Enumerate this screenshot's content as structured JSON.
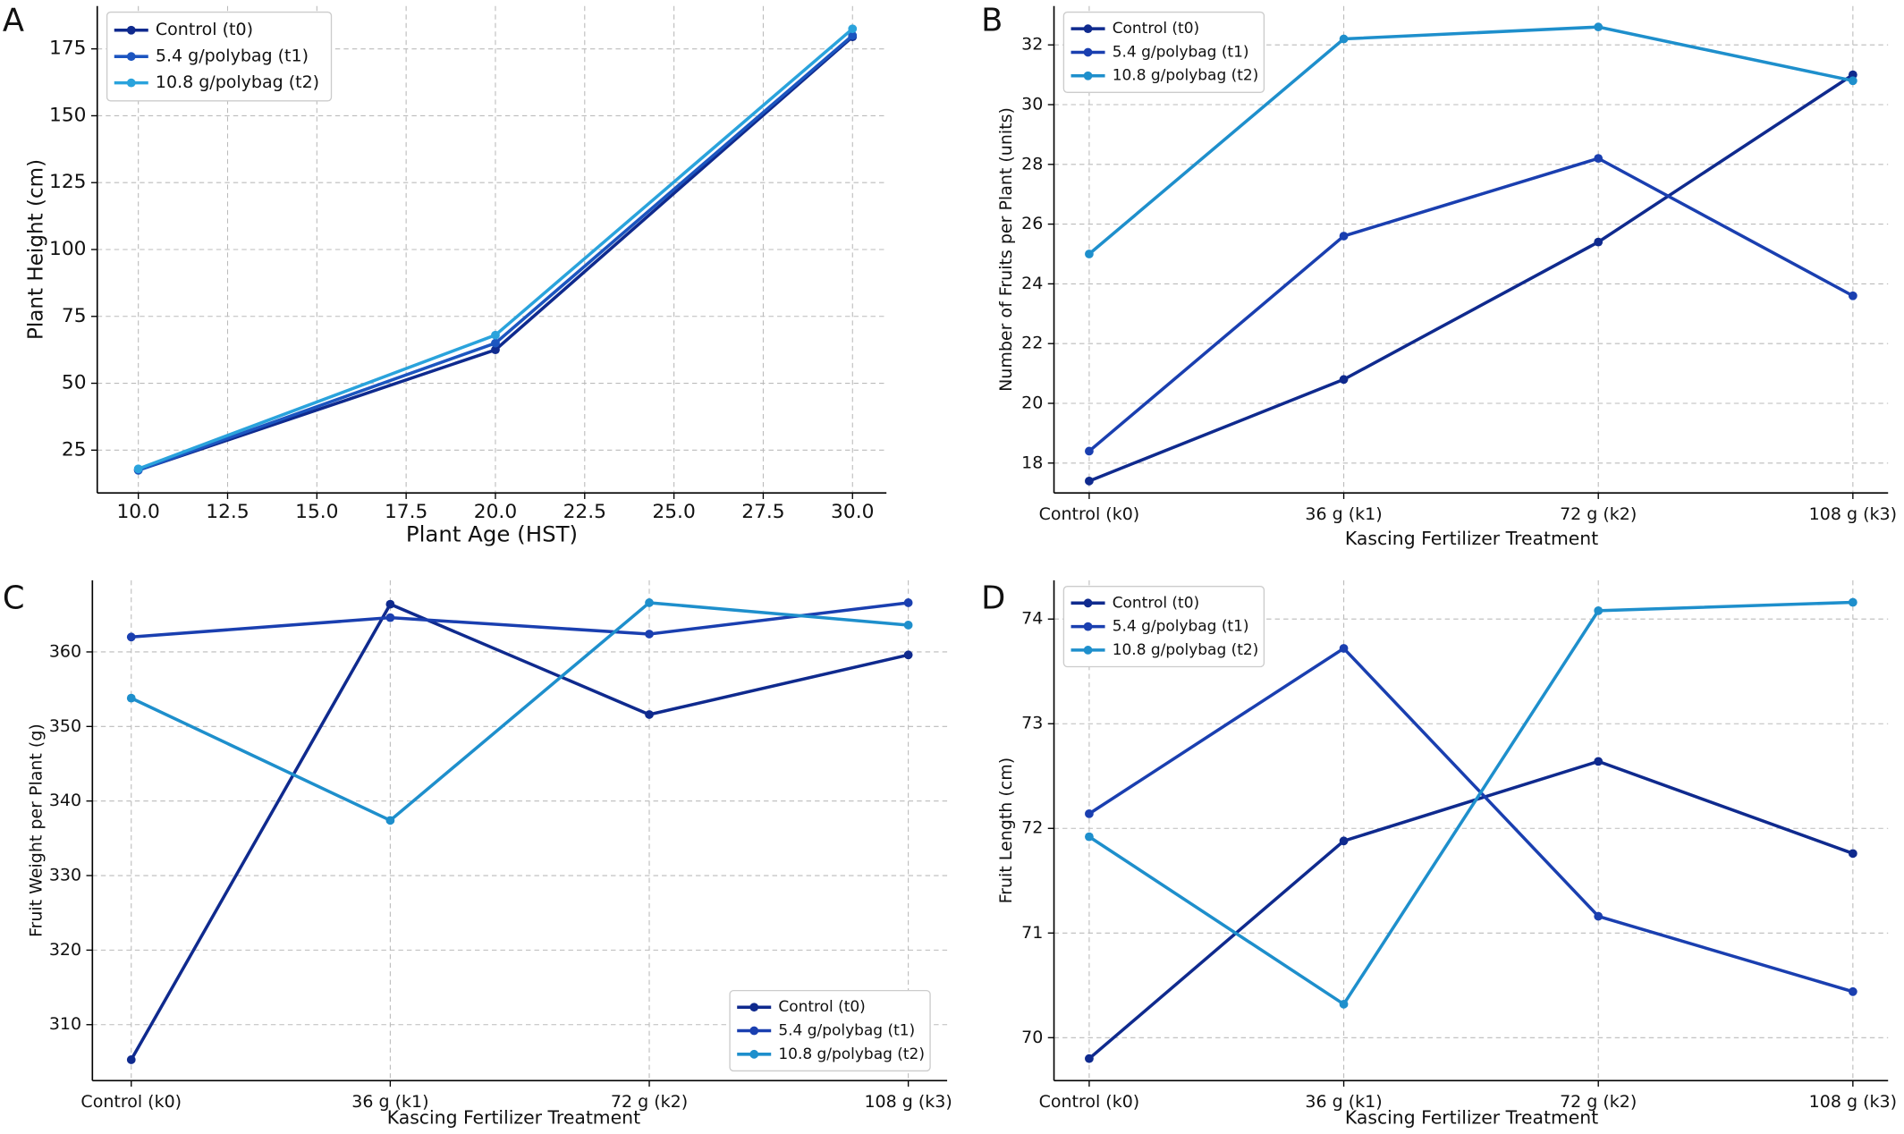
{
  "chart_data": [
    {
      "type": "line",
      "label": "A",
      "x_label": "Plant Age (HST)",
      "y_label": "Plant Height (cm)",
      "x": [
        10,
        20,
        30
      ],
      "series": [
        {
          "name": "Control (t0)",
          "color": "#0f2a8e",
          "values": [
            17.5,
            62.5,
            179.5
          ]
        },
        {
          "name": "5.4 g/polybag (t1)",
          "color": "#1c55c0",
          "values": [
            17.5,
            65,
            180
          ]
        },
        {
          "name": "10.8 g/polybag (t2)",
          "color": "#2aa3dc",
          "values": [
            18,
            68,
            182.5
          ]
        }
      ],
      "xlim": [
        8.85,
        30.95
      ],
      "xticks": [
        {
          "value": 10,
          "label": "10.0"
        },
        12.5,
        {
          "value": 15,
          "label": "15.0"
        },
        17.5,
        {
          "value": 20,
          "label": "20.0"
        },
        22.5,
        {
          "value": 25,
          "label": "25.0"
        },
        27.5,
        {
          "value": 30,
          "label": "30.0"
        }
      ],
      "ylim": [
        9,
        191
      ],
      "yticks": [
        25,
        50,
        75,
        100,
        125,
        150,
        175
      ],
      "grid": true,
      "legend": "upper left"
    },
    {
      "type": "line",
      "label": "B",
      "x_label": "Kascing Fertilizer Treatment",
      "y_label": "Number of Fruits per Plant (units)",
      "categories": [
        "Control (k0)",
        "36 g (k1)",
        "72 g (k2)",
        "108 g (k3)"
      ],
      "series": [
        {
          "name": "Control (t0)",
          "color": "#0f2a8e",
          "values": [
            17.4,
            20.8,
            25.4,
            31.0
          ]
        },
        {
          "name": "5.4 g/polybag (t1)",
          "color": "#1a3fb0",
          "values": [
            18.4,
            25.6,
            28.2,
            23.6
          ]
        },
        {
          "name": "10.8 g/polybag (t2)",
          "color": "#1e8fcc",
          "values": [
            25.0,
            32.2,
            32.6,
            30.8
          ]
        }
      ],
      "ylim": [
        17.0,
        33.3
      ],
      "yticks": [
        18,
        20,
        22,
        24,
        26,
        28,
        30,
        32
      ],
      "grid": true,
      "legend": "upper left"
    },
    {
      "type": "line",
      "label": "C",
      "x_label": "Kascing Fertilizer Treatment",
      "y_label": "Fruit Weight per Plant (g)",
      "categories": [
        "Control (k0)",
        "36 g (k1)",
        "72 g (k2)",
        "108 g (k3)"
      ],
      "series": [
        {
          "name": "Control (t0)",
          "color": "#0f2a8e",
          "values": [
            305.3,
            366.4,
            351.6,
            359.6
          ]
        },
        {
          "name": "5.4 g/polybag (t1)",
          "color": "#1a3fb0",
          "values": [
            362.0,
            364.6,
            362.4,
            366.6
          ]
        },
        {
          "name": "10.8 g/polybag (t2)",
          "color": "#1e8fcc",
          "values": [
            353.8,
            337.4,
            366.6,
            363.6
          ]
        }
      ],
      "ylim": [
        302.5,
        369.6
      ],
      "yticks": [
        310,
        320,
        330,
        340,
        350,
        360
      ],
      "grid": true,
      "legend": "lower right"
    },
    {
      "type": "line",
      "label": "D",
      "x_label": "Kascing Fertilizer Treatment",
      "y_label": "Fruit Length (cm)",
      "categories": [
        "Control (k0)",
        "36 g (k1)",
        "72 g (k2)",
        "108 g (k3)"
      ],
      "series": [
        {
          "name": "Control (t0)",
          "color": "#0f2a8e",
          "values": [
            69.8,
            71.88,
            72.64,
            71.76
          ]
        },
        {
          "name": "5.4 g/polybag (t1)",
          "color": "#1a3fb0",
          "values": [
            72.14,
            73.72,
            71.16,
            70.44
          ]
        },
        {
          "name": "10.8 g/polybag (t2)",
          "color": "#1e8fcc",
          "values": [
            71.92,
            70.32,
            74.08,
            74.16
          ]
        }
      ],
      "ylim": [
        69.59,
        74.37
      ],
      "yticks": [
        70,
        71,
        72,
        73,
        74
      ],
      "grid": true,
      "legend": "upper left"
    }
  ]
}
